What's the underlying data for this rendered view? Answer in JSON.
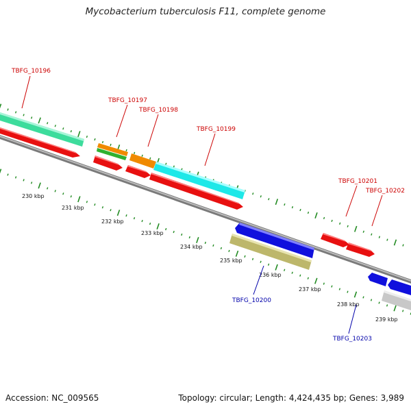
{
  "title": "Mycobacterium tuberculosis F11, complete genome",
  "footer": {
    "accession": "Accession: NC_009565",
    "summary": "Topology: circular; Length: 4,424,435 bp; Genes: 3,989"
  },
  "colors": {
    "forward_label": "#cc0000",
    "reverse_label": "#0000aa",
    "tick": "#228b22",
    "backbone": "#808080"
  },
  "scale_labels": [
    "230 kbp",
    "231 kbp",
    "232 kbp",
    "233 kbp",
    "234 kbp",
    "235 kbp",
    "236 kbp",
    "237 kbp",
    "238 kbp",
    "239 kbp"
  ],
  "gene_labels": [
    {
      "text": "TBFG_10196",
      "strand": "forward"
    },
    {
      "text": "TBFG_10197",
      "strand": "forward"
    },
    {
      "text": "TBFG_10198",
      "strand": "forward"
    },
    {
      "text": "TBFG_10199",
      "strand": "forward"
    },
    {
      "text": "TBFG_10200",
      "strand": "reverse"
    },
    {
      "text": "TBFG_10201",
      "strand": "forward"
    },
    {
      "text": "TBFG_10202",
      "strand": "forward"
    },
    {
      "text": "TBFG_10203",
      "strand": "reverse"
    }
  ]
}
